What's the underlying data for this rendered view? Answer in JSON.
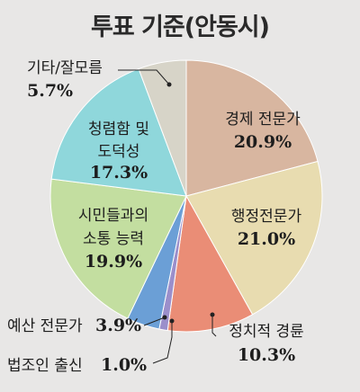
{
  "chart_data": {
    "type": "pie",
    "title": "투표 기준(안동시)",
    "slices": [
      {
        "label": "경제 전문가",
        "value": 20.9,
        "display": "20.9%",
        "color": "#d8b6a0"
      },
      {
        "label": "행정전문가",
        "value": 21.0,
        "display": "21.0%",
        "color": "#e8dcb0"
      },
      {
        "label": "정치적 경륜",
        "value": 10.3,
        "display": "10.3%",
        "color": "#ea8d76"
      },
      {
        "label": "법조인 출신",
        "value": 1.0,
        "display": "1.0%",
        "color": "#9b8fcb"
      },
      {
        "label": "예산 전문가",
        "value": 3.9,
        "display": "3.9%",
        "color": "#6b9fd6"
      },
      {
        "label": "시민들과의 소통 능력",
        "value": 19.9,
        "display": "19.9%",
        "color": "#c3dea0"
      },
      {
        "label": "청렴함 및 도덕성",
        "value": 17.3,
        "display": "17.3%",
        "color": "#8fd7db"
      },
      {
        "label": "기타/잘모름",
        "value": 5.7,
        "display": "5.7%",
        "color": "#d7d4c8"
      }
    ]
  }
}
